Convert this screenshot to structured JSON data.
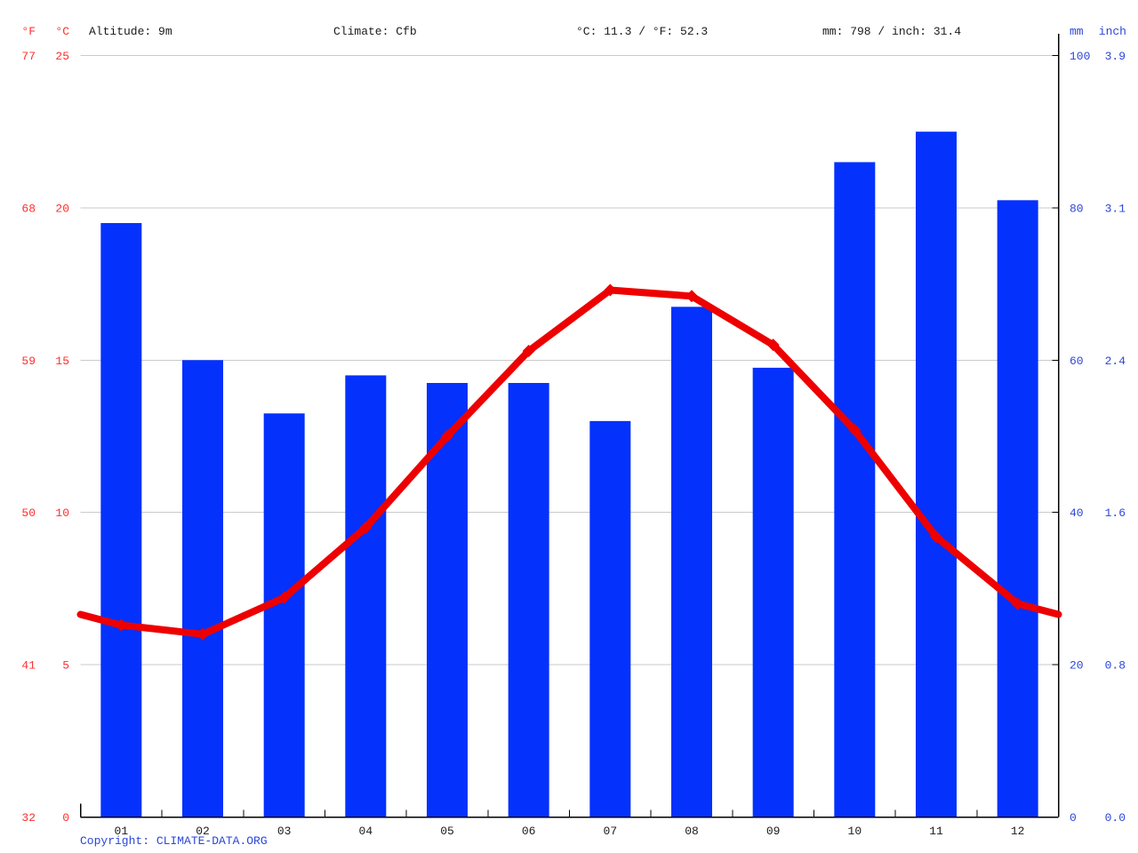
{
  "header": {
    "fahrenheit_label": "°F",
    "celsius_label": "°C",
    "altitude": "Altitude: 9m",
    "climate": "Climate: Cfb",
    "temperature_avg": "°C: 11.3 / °F: 52.3",
    "precipitation_total": "mm: 798 / inch: 31.4",
    "mm_label": "mm",
    "inch_label": "inch"
  },
  "footer": {
    "copyright_prefix": "Copyright: ",
    "copyright_link": "CLIMATE-DATA.ORG"
  },
  "colors": {
    "bar": "#0431fc",
    "line": "#ed0000",
    "red_label": "#ff2e2e",
    "blue_label": "#2b46d9",
    "grid": "#cacaca",
    "axis": "#000000",
    "text": "#1a1a1a"
  },
  "chart_data": {
    "type": "combo-bar-line",
    "title": "Climate graph (monthly precipitation bars + temperature line)",
    "categories": [
      "01",
      "02",
      "03",
      "04",
      "05",
      "06",
      "07",
      "08",
      "09",
      "10",
      "11",
      "12"
    ],
    "series": [
      {
        "name": "precipitation_mm",
        "type": "bar",
        "values": [
          78,
          60,
          53,
          58,
          57,
          57,
          52,
          67,
          59,
          86,
          90,
          81
        ]
      },
      {
        "name": "temperature_c",
        "type": "line",
        "values": [
          6.3,
          6.0,
          7.2,
          9.5,
          12.5,
          15.3,
          17.3,
          17.1,
          15.5,
          12.7,
          9.2,
          7.0
        ],
        "edge_left": 6.65,
        "edge_right": 6.65
      }
    ],
    "axis_left": {
      "f_labels": [
        "77",
        "68",
        "59",
        "50",
        "41",
        "32"
      ],
      "c_labels": [
        "25",
        "20",
        "15",
        "10",
        "5",
        "0"
      ],
      "c_values": [
        25,
        20,
        15,
        10,
        5,
        0
      ],
      "range_c": [
        0,
        25
      ]
    },
    "axis_right": {
      "mm_labels": [
        "100",
        "80",
        "60",
        "40",
        "20",
        "0"
      ],
      "inch_labels": [
        "3.9",
        "3.1",
        "2.4",
        "1.6",
        "0.8",
        "0.0"
      ],
      "mm_values": [
        100,
        80,
        60,
        40,
        20,
        0
      ],
      "range_mm": [
        0,
        100
      ]
    },
    "grid": true,
    "legend": false
  }
}
